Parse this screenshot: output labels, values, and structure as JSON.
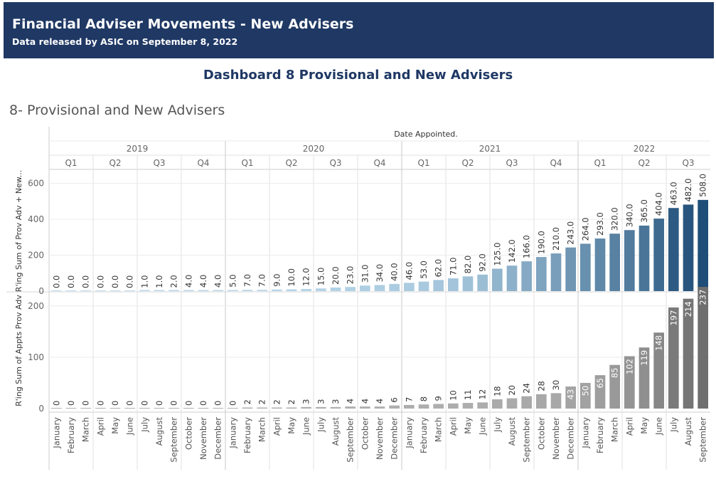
{
  "header": {
    "title": "Financial Adviser Movements - New Advisers",
    "subtitle": "Data released by ASIC on September 8, 2022",
    "bg_color": "#1f3864"
  },
  "dashboard_title": "Dashboard 8 Provisional and New Advisers",
  "sheet_title": "8- Provisional and New Advisers",
  "chart_data": {
    "type": "bar",
    "column_header_title": "Date Appointed.",
    "years": [
      {
        "label": "2019",
        "quarters": [
          "Q1",
          "Q2",
          "Q3",
          "Q4"
        ]
      },
      {
        "label": "2020",
        "quarters": [
          "Q1",
          "Q2",
          "Q3",
          "Q4"
        ]
      },
      {
        "label": "2021",
        "quarters": [
          "Q1",
          "Q2",
          "Q3",
          "Q4"
        ]
      },
      {
        "label": "2022",
        "quarters": [
          "Q1",
          "Q2",
          "Q3"
        ]
      }
    ],
    "categories": [
      "January",
      "February",
      "March",
      "April",
      "May",
      "June",
      "July",
      "August",
      "September",
      "October",
      "November",
      "December",
      "January",
      "February",
      "March",
      "April",
      "May",
      "June",
      "July",
      "August",
      "September",
      "October",
      "November",
      "December",
      "January",
      "February",
      "March",
      "April",
      "May",
      "June",
      "July",
      "August",
      "September",
      "October",
      "November",
      "December",
      "January",
      "February",
      "March",
      "April",
      "May",
      "June",
      "July",
      "August",
      "September"
    ],
    "series": [
      {
        "ylabel": "R'ing Sum of Prov Adv + New...",
        "values": [
          0,
          0,
          0,
          0,
          0,
          0,
          1,
          1,
          2,
          4,
          4,
          4,
          5,
          7,
          7,
          9,
          10,
          12,
          15,
          20,
          23,
          31,
          34,
          40,
          46,
          53,
          62,
          71,
          82,
          92,
          125,
          142,
          166,
          190,
          210,
          243,
          264,
          293,
          320,
          340,
          365,
          404,
          463,
          482,
          508
        ],
        "labels": [
          "0.0",
          "0.0",
          "0.0",
          "0.0",
          "0.0",
          "0.0",
          "1.0",
          "1.0",
          "2.0",
          "4.0",
          "4.0",
          "4.0",
          "5.0",
          "7.0",
          "7.0",
          "9.0",
          "10.0",
          "12.0",
          "15.0",
          "20.0",
          "23.0",
          "31.0",
          "34.0",
          "40.0",
          "46.0",
          "53.0",
          "62.0",
          "71.0",
          "82.0",
          "92.0",
          "125.0",
          "142.0",
          "166.0",
          "190.0",
          "210.0",
          "243.0",
          "264.0",
          "293.0",
          "320.0",
          "340.0",
          "365.0",
          "404.0",
          "463.0",
          "482.0",
          "508.0"
        ],
        "ylim": [
          0,
          670
        ],
        "yticks": [
          0,
          200,
          400,
          600
        ],
        "color_scale": [
          "#b8d7ea",
          "#1f4e78"
        ]
      },
      {
        "ylabel": "R'ing Sum of Appts Prov Adv",
        "values": [
          0,
          0,
          0,
          0,
          0,
          0,
          0,
          0,
          0,
          0,
          0,
          0,
          0,
          2,
          2,
          2,
          2,
          3,
          3,
          3,
          4,
          4,
          4,
          6,
          7,
          8,
          9,
          10,
          11,
          12,
          18,
          20,
          24,
          28,
          30,
          43,
          50,
          65,
          85,
          102,
          119,
          148,
          197,
          214,
          237
        ],
        "labels": [
          "0",
          "0",
          "0",
          "0",
          "0",
          "0",
          "0",
          "0",
          "0",
          "0",
          "0",
          "0",
          "0",
          "2",
          "2",
          "2",
          "2",
          "3",
          "3",
          "3",
          "4",
          "4",
          "4",
          "6",
          "7",
          "8",
          "9",
          "10",
          "11",
          "12",
          "18",
          "20",
          "24",
          "28",
          "30",
          "43",
          "50",
          "65",
          "85",
          "102",
          "119",
          "148",
          "197",
          "214",
          "237"
        ],
        "ylim": [
          0,
          226
        ],
        "yticks": [
          0,
          100,
          200
        ],
        "color_scale": [
          "#b0b0b0",
          "#6f6f6f"
        ]
      }
    ],
    "grid": true,
    "legend": "none"
  }
}
